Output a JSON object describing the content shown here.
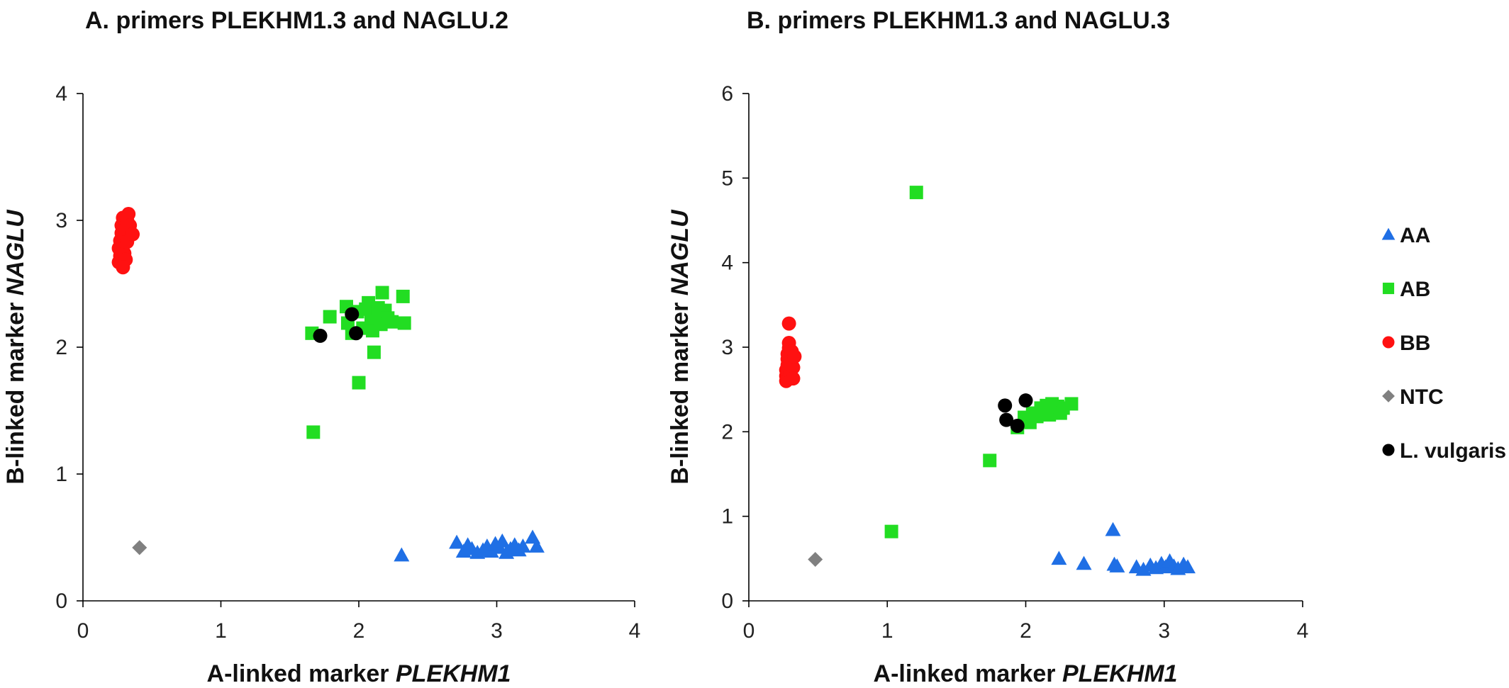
{
  "chart_data": [
    {
      "type": "scatter",
      "title": "A. primers PLEKHM1.3 and NAGLU.2",
      "xlabel": "A-linked marker",
      "xlabel_italic": "PLEKHM1",
      "ylabel": "B-linked marker",
      "ylabel_italic": "NAGLU",
      "xlim": [
        0,
        4
      ],
      "ylim": [
        0,
        4
      ],
      "x_ticks": [
        "0",
        "1",
        "2",
        "3",
        "4"
      ],
      "y_ticks": [
        "0",
        "1",
        "2",
        "3",
        "4"
      ],
      "series": [
        {
          "name": "AA",
          "marker": "triangle",
          "color": "#1f6fe5",
          "points": [
            [
              2.31,
              0.36
            ],
            [
              2.71,
              0.46
            ],
            [
              2.76,
              0.39
            ],
            [
              2.79,
              0.44
            ],
            [
              2.82,
              0.41
            ],
            [
              2.86,
              0.38
            ],
            [
              2.9,
              0.4
            ],
            [
              2.93,
              0.43
            ],
            [
              2.96,
              0.39
            ],
            [
              2.99,
              0.45
            ],
            [
              3.02,
              0.42
            ],
            [
              3.04,
              0.47
            ],
            [
              3.07,
              0.38
            ],
            [
              3.1,
              0.41
            ],
            [
              3.13,
              0.44
            ],
            [
              3.16,
              0.4
            ],
            [
              3.19,
              0.43
            ],
            [
              3.26,
              0.5
            ],
            [
              3.29,
              0.43
            ]
          ]
        },
        {
          "name": "AB",
          "marker": "square",
          "color": "#22dd22",
          "points": [
            [
              1.67,
              1.33
            ],
            [
              1.66,
              2.11
            ],
            [
              1.79,
              2.24
            ],
            [
              1.91,
              2.32
            ],
            [
              1.92,
              2.19
            ],
            [
              1.95,
              2.11
            ],
            [
              1.99,
              2.28
            ],
            [
              2.0,
              1.72
            ],
            [
              2.03,
              2.15
            ],
            [
              2.05,
              2.3
            ],
            [
              2.07,
              2.35
            ],
            [
              2.09,
              2.21
            ],
            [
              2.1,
              2.13
            ],
            [
              2.11,
              1.96
            ],
            [
              2.12,
              2.26
            ],
            [
              2.14,
              2.31
            ],
            [
              2.16,
              2.18
            ],
            [
              2.17,
              2.43
            ],
            [
              2.19,
              2.29
            ],
            [
              2.21,
              2.23
            ],
            [
              2.24,
              2.2
            ],
            [
              2.32,
              2.4
            ],
            [
              2.33,
              2.19
            ]
          ]
        },
        {
          "name": "BB",
          "marker": "circle",
          "color": "#ff1111",
          "points": [
            [
              0.26,
              2.67
            ],
            [
              0.27,
              2.72
            ],
            [
              0.26,
              2.78
            ],
            [
              0.27,
              2.84
            ],
            [
              0.28,
              2.9
            ],
            [
              0.28,
              2.96
            ],
            [
              0.29,
              3.02
            ],
            [
              0.29,
              2.8
            ],
            [
              0.3,
              2.74
            ],
            [
              0.3,
              2.87
            ],
            [
              0.31,
              2.93
            ],
            [
              0.31,
              2.69
            ],
            [
              0.32,
              3.0
            ],
            [
              0.32,
              2.83
            ],
            [
              0.33,
              3.05
            ],
            [
              0.34,
              2.96
            ],
            [
              0.29,
              2.63
            ],
            [
              0.36,
              2.89
            ]
          ]
        },
        {
          "name": "NTC",
          "marker": "diamond",
          "color": "#808080",
          "points": [
            [
              0.41,
              0.42
            ]
          ]
        },
        {
          "name": "L. vulgaris",
          "marker": "circle",
          "color": "#000000",
          "points": [
            [
              1.72,
              2.09
            ],
            [
              1.95,
              2.26
            ],
            [
              1.98,
              2.11
            ]
          ]
        }
      ]
    },
    {
      "type": "scatter",
      "title": "B. primers PLEKHM1.3 and NAGLU.3",
      "xlabel": "A-linked marker",
      "xlabel_italic": "PLEKHM1",
      "ylabel": "B-linked marker",
      "ylabel_italic": "NAGLU",
      "xlim": [
        0,
        4
      ],
      "ylim": [
        0,
        6
      ],
      "x_ticks": [
        "0",
        "1",
        "2",
        "3",
        "4"
      ],
      "y_ticks": [
        "0",
        "1",
        "2",
        "3",
        "4",
        "5",
        "6"
      ],
      "series": [
        {
          "name": "AA",
          "marker": "triangle",
          "color": "#1f6fe5",
          "points": [
            [
              2.24,
              0.5
            ],
            [
              2.42,
              0.44
            ],
            [
              2.63,
              0.84
            ],
            [
              2.64,
              0.43
            ],
            [
              2.66,
              0.41
            ],
            [
              2.8,
              0.4
            ],
            [
              2.85,
              0.37
            ],
            [
              2.9,
              0.42
            ],
            [
              2.94,
              0.39
            ],
            [
              2.98,
              0.44
            ],
            [
              3.01,
              0.4
            ],
            [
              3.04,
              0.47
            ],
            [
              3.07,
              0.41
            ],
            [
              3.1,
              0.38
            ],
            [
              3.14,
              0.43
            ],
            [
              3.17,
              0.4
            ]
          ]
        },
        {
          "name": "AB",
          "marker": "square",
          "color": "#22dd22",
          "points": [
            [
              1.03,
              0.82
            ],
            [
              1.21,
              4.83
            ],
            [
              1.74,
              1.66
            ],
            [
              1.94,
              2.05
            ],
            [
              1.99,
              2.17
            ],
            [
              2.03,
              2.11
            ],
            [
              2.05,
              2.22
            ],
            [
              2.08,
              2.18
            ],
            [
              2.11,
              2.28
            ],
            [
              2.13,
              2.23
            ],
            [
              2.15,
              2.31
            ],
            [
              2.17,
              2.2
            ],
            [
              2.19,
              2.33
            ],
            [
              2.21,
              2.25
            ],
            [
              2.23,
              2.3
            ],
            [
              2.25,
              2.22
            ],
            [
              2.27,
              2.28
            ],
            [
              2.33,
              2.33
            ]
          ]
        },
        {
          "name": "BB",
          "marker": "circle",
          "color": "#ff1111",
          "points": [
            [
              0.27,
              2.6
            ],
            [
              0.27,
              2.66
            ],
            [
              0.27,
              2.73
            ],
            [
              0.28,
              2.79
            ],
            [
              0.28,
              2.86
            ],
            [
              0.28,
              2.92
            ],
            [
              0.29,
              2.99
            ],
            [
              0.29,
              3.05
            ],
            [
              0.3,
              2.7
            ],
            [
              0.3,
              2.83
            ],
            [
              0.31,
              2.95
            ],
            [
              0.32,
              2.76
            ],
            [
              0.32,
              2.63
            ],
            [
              0.33,
              2.89
            ],
            [
              0.29,
              3.28
            ]
          ]
        },
        {
          "name": "NTC",
          "marker": "diamond",
          "color": "#808080",
          "points": [
            [
              0.48,
              0.49
            ]
          ]
        },
        {
          "name": "L. vulgaris",
          "marker": "circle",
          "color": "#000000",
          "points": [
            [
              1.85,
              2.31
            ],
            [
              1.86,
              2.14
            ],
            [
              1.94,
              2.07
            ],
            [
              2.0,
              2.37
            ]
          ]
        }
      ]
    }
  ],
  "legend": {
    "position": "right",
    "items": [
      {
        "label": "AA",
        "marker": "triangle",
        "color": "#1f6fe5"
      },
      {
        "label": "AB",
        "marker": "square",
        "color": "#22dd22"
      },
      {
        "label": "BB",
        "marker": "circle",
        "color": "#ff1111"
      },
      {
        "label": "NTC",
        "marker": "diamond",
        "color": "#808080"
      },
      {
        "label": "L. vulgaris",
        "marker": "circle",
        "color": "#000000"
      }
    ]
  }
}
